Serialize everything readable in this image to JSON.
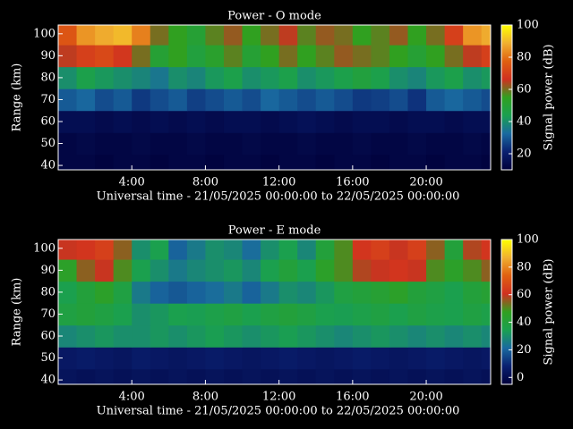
{
  "chart_data": [
    {
      "type": "heatmap",
      "title": "Power - O mode",
      "ylabel": "Range (km)",
      "xlabel": "Universal time - 21/05/2025 00:00:00 to 22/05/2025 00:00:00",
      "colorbar_label": "Signal power (dB)",
      "x": [
        0.5,
        1.5,
        2.5,
        3.5,
        4.5,
        5.5,
        6.5,
        7.5,
        8.5,
        9.5,
        10.5,
        11.5,
        12.5,
        13.5,
        14.5,
        15.5,
        16.5,
        17.5,
        18.5,
        19.5,
        20.5,
        21.5,
        22.5,
        23.5
      ],
      "y": [
        40,
        50,
        60,
        70,
        80,
        90,
        100
      ],
      "z": [
        [
          12,
          12,
          11,
          12,
          12,
          11,
          12,
          12,
          11,
          12,
          12,
          11,
          12,
          12,
          11,
          12,
          12,
          11,
          12,
          12,
          11,
          12,
          12,
          11
        ],
        [
          12,
          13,
          12,
          12,
          13,
          12,
          12,
          13,
          12,
          12,
          13,
          12,
          12,
          13,
          12,
          12,
          13,
          12,
          12,
          13,
          12,
          12,
          13,
          12
        ],
        [
          15,
          15,
          14,
          15,
          14,
          15,
          14,
          15,
          14,
          15,
          15,
          14,
          15,
          16,
          15,
          14,
          15,
          15,
          14,
          15,
          15,
          14,
          15,
          15
        ],
        [
          30,
          32,
          28,
          30,
          25,
          28,
          30,
          26,
          28,
          30,
          28,
          32,
          30,
          28,
          30,
          28,
          25,
          26,
          28,
          24,
          30,
          32,
          30,
          28
        ],
        [
          40,
          45,
          42,
          40,
          38,
          35,
          40,
          38,
          42,
          45,
          40,
          42,
          45,
          40,
          42,
          45,
          48,
          45,
          40,
          38,
          42,
          45,
          40,
          42
        ],
        [
          65,
          70,
          72,
          68,
          60,
          50,
          55,
          48,
          52,
          58,
          50,
          55,
          60,
          55,
          58,
          62,
          60,
          58,
          55,
          50,
          55,
          60,
          65,
          70
        ],
        [
          75,
          85,
          88,
          90,
          82,
          60,
          55,
          50,
          58,
          62,
          55,
          60,
          65,
          58,
          62,
          60,
          55,
          58,
          62,
          55,
          60,
          70,
          85,
          88
        ]
      ],
      "xlim": [
        0,
        23.5
      ],
      "xticks": [
        {
          "value": 4,
          "label": "4:00"
        },
        {
          "value": 8,
          "label": "8:00"
        },
        {
          "value": 12,
          "label": "12:00"
        },
        {
          "value": 16,
          "label": "16:00"
        },
        {
          "value": 20,
          "label": "20:00"
        }
      ],
      "ylim": [
        38,
        104
      ],
      "yticks": [
        40,
        50,
        60,
        70,
        80,
        90,
        100
      ],
      "clim": [
        10,
        100
      ],
      "cticks": [
        20,
        40,
        60,
        80,
        100
      ],
      "colormap": [
        "#00003a",
        "#0a2070",
        "#1a6aa0",
        "#1aa050",
        "#30a020",
        "#d03020",
        "#e06010",
        "#f0b030",
        "#ffff00"
      ]
    },
    {
      "type": "heatmap",
      "title": "Power - E mode",
      "ylabel": "Range (km)",
      "xlabel": "Universal time - 21/05/2025 00:00:00 to 22/05/2025 00:00:00",
      "colorbar_label": "Signal power (dB)",
      "x": [
        0.5,
        1.5,
        2.5,
        3.5,
        4.5,
        5.5,
        6.5,
        7.5,
        8.5,
        9.5,
        10.5,
        11.5,
        12.5,
        13.5,
        14.5,
        15.5,
        16.5,
        17.5,
        18.5,
        19.5,
        20.5,
        21.5,
        22.5,
        23.5
      ],
      "y": [
        40,
        50,
        60,
        70,
        80,
        90,
        100
      ],
      "z": [
        [
          3,
          2,
          3,
          2,
          3,
          2,
          3,
          2,
          3,
          2,
          3,
          2,
          3,
          2,
          3,
          2,
          3,
          2,
          3,
          2,
          3,
          2,
          3,
          2
        ],
        [
          5,
          6,
          5,
          4,
          6,
          5,
          4,
          5,
          6,
          5,
          4,
          5,
          6,
          5,
          4,
          5,
          6,
          5,
          4,
          5,
          6,
          5,
          4,
          5
        ],
        [
          28,
          30,
          32,
          30,
          30,
          32,
          30,
          32,
          34,
          32,
          30,
          32,
          34,
          32,
          30,
          28,
          30,
          32,
          30,
          28,
          30,
          28,
          30,
          28
        ],
        [
          38,
          40,
          38,
          35,
          30,
          32,
          35,
          34,
          36,
          38,
          35,
          38,
          40,
          38,
          35,
          34,
          36,
          38,
          35,
          38,
          36,
          35,
          38,
          36
        ],
        [
          35,
          40,
          45,
          38,
          25,
          20,
          18,
          20,
          22,
          25,
          20,
          25,
          30,
          28,
          32,
          38,
          40,
          42,
          45,
          40,
          38,
          35,
          40,
          42
        ],
        [
          45,
          55,
          60,
          50,
          35,
          30,
          25,
          28,
          30,
          32,
          28,
          35,
          40,
          35,
          45,
          50,
          58,
          60,
          62,
          60,
          50,
          45,
          50,
          55
        ],
        [
          60,
          62,
          65,
          55,
          30,
          35,
          20,
          25,
          30,
          28,
          22,
          30,
          35,
          28,
          40,
          50,
          62,
          65,
          60,
          65,
          55,
          40,
          58,
          62
        ]
      ],
      "xlim": [
        0,
        23.5
      ],
      "xticks": [
        {
          "value": 4,
          "label": "4:00"
        },
        {
          "value": 8,
          "label": "8:00"
        },
        {
          "value": 12,
          "label": "12:00"
        },
        {
          "value": 16,
          "label": "16:00"
        },
        {
          "value": 20,
          "label": "20:00"
        }
      ],
      "ylim": [
        38,
        104
      ],
      "yticks": [
        40,
        50,
        60,
        70,
        80,
        90,
        100
      ],
      "clim": [
        -5,
        100
      ],
      "cticks": [
        0,
        20,
        40,
        60,
        80,
        100
      ],
      "colormap": [
        "#00003a",
        "#0a2070",
        "#1a6aa0",
        "#1aa050",
        "#30a020",
        "#d03020",
        "#e06010",
        "#f0b030",
        "#ffff00"
      ]
    }
  ]
}
